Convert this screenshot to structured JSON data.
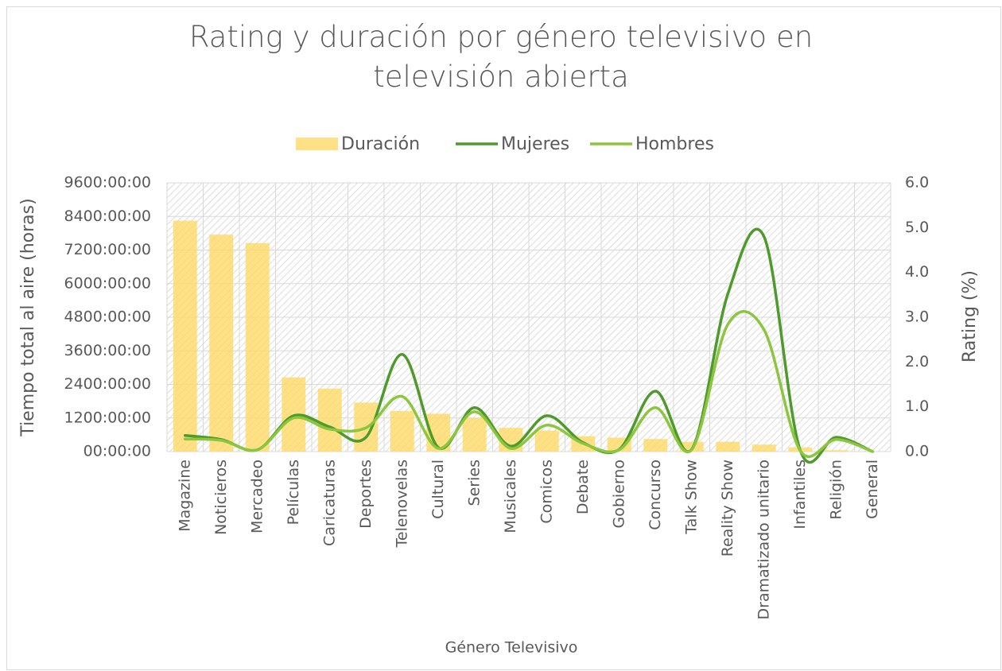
{
  "chart_data": {
    "type": "bar",
    "title": "Rating y duración por género televisivo en televisión abierta",
    "x_label": "Género Televisivo",
    "y_label": "Tiempo total al aire (horas)",
    "y2_label": "Rating (%)",
    "categories": [
      "Magazine",
      "Noticieros",
      "Mercadeo",
      "Películas",
      "Caricaturas",
      "Deportes",
      "Telenovelas",
      "Cultural",
      "Series",
      "Musicales",
      "Comicos",
      "Debate",
      "Gobierno",
      "Concurso",
      "Talk Show",
      "Reality Show",
      "Dramatizado unitario",
      "Infantiles",
      "Religión",
      "General"
    ],
    "series": [
      {
        "name": "Duración",
        "type": "bar",
        "color": "#ffd966",
        "values": [
          8250,
          7750,
          7450,
          2650,
          2250,
          1750,
          1450,
          1350,
          1200,
          850,
          750,
          550,
          500,
          450,
          350,
          350,
          250,
          150,
          50,
          0
        ]
      },
      {
        "name": "Mujeres",
        "type": "line",
        "axis": "y2",
        "color": "#4e9a2a",
        "values": [
          0.36,
          0.27,
          0.04,
          0.8,
          0.55,
          0.32,
          2.17,
          0.09,
          0.98,
          0.12,
          0.8,
          0.2,
          0.05,
          1.35,
          0.05,
          3.52,
          4.8,
          0.03,
          0.32,
          0
        ]
      },
      {
        "name": "Hombres",
        "type": "line",
        "axis": "y2",
        "color": "#8cc63f",
        "values": [
          0.28,
          0.25,
          0.04,
          0.75,
          0.5,
          0.53,
          1.23,
          0.07,
          0.89,
          0.07,
          0.59,
          0.18,
          0.04,
          0.98,
          0.04,
          2.84,
          2.72,
          0.02,
          0.27,
          0
        ]
      }
    ],
    "ylim": [
      0,
      9600
    ],
    "yticks": [
      {
        "value": 0,
        "label": "00:00:00"
      },
      {
        "value": 1200,
        "label": "1200:00:00"
      },
      {
        "value": 2400,
        "label": "2400:00:00"
      },
      {
        "value": 3600,
        "label": "3600:00:00"
      },
      {
        "value": 4800,
        "label": "4800:00:00"
      },
      {
        "value": 6000,
        "label": "6000:00:00"
      },
      {
        "value": 7200,
        "label": "7200:00:00"
      },
      {
        "value": 8400,
        "label": "8400:00:00"
      },
      {
        "value": 9600,
        "label": "9600:00:00"
      }
    ],
    "y2lim": [
      0,
      6
    ],
    "y2ticks": [
      {
        "value": 0,
        "label": "0.0"
      },
      {
        "value": 1,
        "label": "1.0"
      },
      {
        "value": 2,
        "label": "2.0"
      },
      {
        "value": 3,
        "label": "3.0"
      },
      {
        "value": 4,
        "label": "4.0"
      },
      {
        "value": 5,
        "label": "5.0"
      },
      {
        "value": 6,
        "label": "6.0"
      }
    ],
    "grid": true,
    "legend": "top"
  }
}
